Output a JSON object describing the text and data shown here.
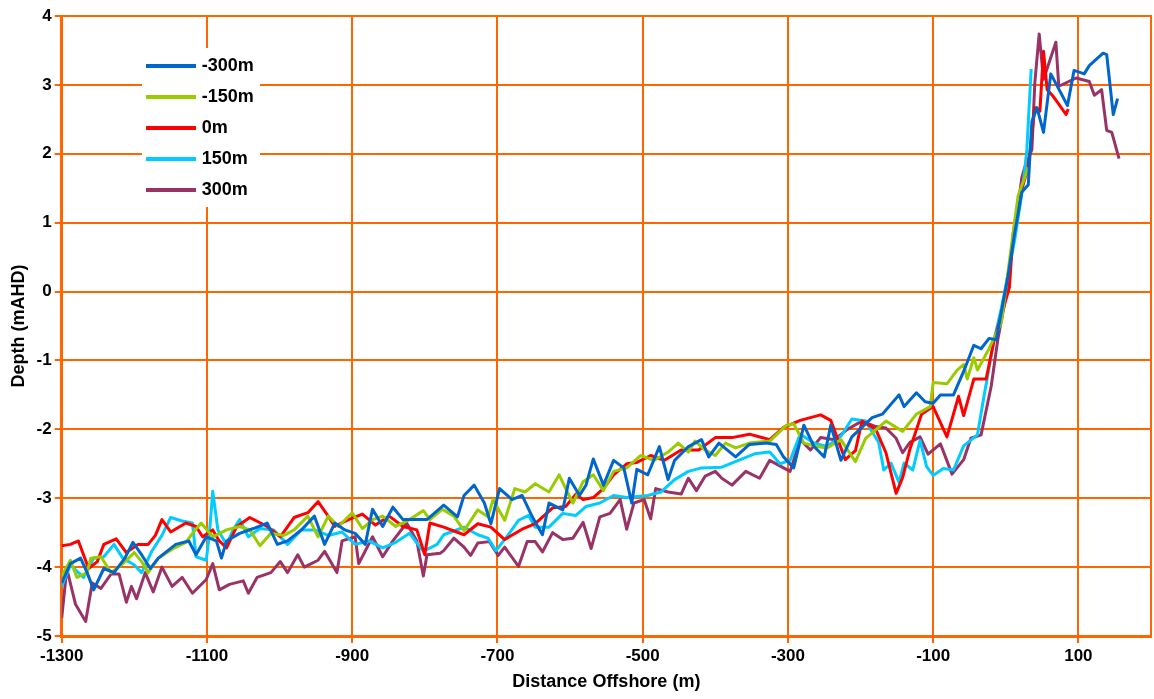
{
  "chart_data": {
    "type": "line",
    "xlabel": "Distance Offshore (m)",
    "ylabel": "Depth (mAHD)",
    "xlim": [
      -1300,
      200
    ],
    "xticks": [
      -1300,
      -1100,
      -900,
      -700,
      -500,
      -300,
      -100,
      100
    ],
    "ylim": [
      -5,
      4
    ],
    "yticks": [
      -5,
      -4,
      -3,
      -2,
      -1,
      0,
      1,
      2,
      3,
      4
    ],
    "grid": true,
    "legend": "top left",
    "marker": "none",
    "line_style": "solid",
    "series": [
      {
        "name": "-300m",
        "color": "#0066cc",
        "x": [
          -1300,
          -1288,
          -1274,
          -1265,
          -1256,
          -1242,
          -1228,
          -1213,
          -1202,
          -1190,
          -1178,
          -1167,
          -1143,
          -1125,
          -1115,
          -1101,
          -1087,
          -1080,
          -1073,
          -1055,
          -1036,
          -1017,
          -1003,
          -989,
          -970,
          -952,
          -938,
          -924,
          -910,
          -896,
          -882,
          -872,
          -858,
          -844,
          -830,
          -811,
          -797,
          -774,
          -755,
          -746,
          -732,
          -718,
          -709,
          -697,
          -680,
          -666,
          -652,
          -638,
          -629,
          -610,
          -601,
          -587,
          -578,
          -568,
          -554,
          -540,
          -526,
          -515,
          -508,
          -493,
          -477,
          -465,
          -456,
          -437,
          -419,
          -409,
          -395,
          -372,
          -353,
          -330,
          -316,
          -306,
          -292,
          -278,
          -264,
          -250,
          -241,
          -227,
          -212,
          -184,
          -170,
          -147,
          -140,
          -123,
          -111,
          -100,
          -90,
          -72,
          -58,
          -44,
          -34,
          -23,
          -13,
          -6,
          3,
          12,
          22,
          31,
          36,
          43,
          52,
          62,
          85,
          94,
          108,
          115,
          134,
          139,
          148,
          154
        ],
        "values": [
          -4.23,
          -3.95,
          -3.87,
          -4.08,
          -4.33,
          -4.02,
          -4.08,
          -3.87,
          -3.64,
          -3.82,
          -4.02,
          -3.87,
          -3.67,
          -3.62,
          -3.82,
          -3.56,
          -3.62,
          -3.87,
          -3.62,
          -3.51,
          -3.44,
          -3.36,
          -3.67,
          -3.62,
          -3.46,
          -3.26,
          -3.67,
          -3.36,
          -3.46,
          -3.51,
          -3.67,
          -3.16,
          -3.41,
          -3.13,
          -3.31,
          -3.31,
          -3.31,
          -3.1,
          -3.27,
          -2.96,
          -2.81,
          -3.07,
          -3.37,
          -2.86,
          -3.02,
          -2.96,
          -3.27,
          -3.53,
          -3.07,
          -3.17,
          -2.71,
          -2.96,
          -2.81,
          -2.43,
          -2.81,
          -2.45,
          -2.56,
          -3.07,
          -2.58,
          -2.66,
          -2.25,
          -2.73,
          -2.45,
          -2.25,
          -2.15,
          -2.4,
          -2.2,
          -2.4,
          -2.22,
          -2.2,
          -2.22,
          -2.4,
          -2.56,
          -1.94,
          -2.25,
          -2.4,
          -1.94,
          -2.45,
          -2.11,
          -1.83,
          -1.78,
          -1.5,
          -1.67,
          -1.47,
          -1.6,
          -1.62,
          -1.5,
          -1.5,
          -1.16,
          -0.78,
          -0.83,
          -0.68,
          -0.7,
          -0.29,
          0.22,
          0.83,
          1.44,
          1.55,
          2.47,
          2.67,
          2.31,
          3.16,
          2.7,
          3.21,
          3.16,
          3.28,
          3.46,
          3.44,
          2.57,
          2.8
        ]
      },
      {
        "name": "-150m",
        "color": "#99cc00",
        "x": [
          -1300,
          -1288,
          -1279,
          -1265,
          -1260,
          -1246,
          -1232,
          -1218,
          -1200,
          -1190,
          -1181,
          -1167,
          -1148,
          -1129,
          -1120,
          -1108,
          -1092,
          -1073,
          -1055,
          -1041,
          -1027,
          -1012,
          -994,
          -980,
          -961,
          -947,
          -933,
          -919,
          -900,
          -886,
          -872,
          -858,
          -840,
          -821,
          -802,
          -793,
          -776,
          -760,
          -746,
          -727,
          -713,
          -706,
          -690,
          -676,
          -662,
          -648,
          -629,
          -615,
          -606,
          -596,
          -582,
          -568,
          -554,
          -540,
          -522,
          -503,
          -484,
          -465,
          -451,
          -437,
          -428,
          -414,
          -400,
          -386,
          -372,
          -353,
          -325,
          -302,
          -292,
          -278,
          -260,
          -246,
          -227,
          -207,
          -193,
          -165,
          -142,
          -123,
          -104,
          -100,
          -81,
          -67,
          -58,
          -53,
          -44,
          -39,
          -23,
          -6,
          8,
          17,
          31
        ],
        "values": [
          -4.13,
          -3.9,
          -4.15,
          -4.08,
          -3.87,
          -3.85,
          -4.08,
          -3.97,
          -3.79,
          -3.92,
          -4.08,
          -3.87,
          -3.74,
          -3.64,
          -3.51,
          -3.36,
          -3.56,
          -3.46,
          -3.41,
          -3.46,
          -3.69,
          -3.51,
          -3.54,
          -3.46,
          -3.26,
          -3.56,
          -3.26,
          -3.41,
          -3.21,
          -3.44,
          -3.31,
          -3.26,
          -3.41,
          -3.31,
          -3.18,
          -3.31,
          -3.16,
          -3.26,
          -3.47,
          -3.17,
          -3.27,
          -3.02,
          -3.32,
          -2.86,
          -2.91,
          -2.79,
          -2.91,
          -2.66,
          -2.86,
          -3.07,
          -2.76,
          -2.66,
          -2.89,
          -2.61,
          -2.56,
          -2.38,
          -2.45,
          -2.33,
          -2.2,
          -2.33,
          -2.17,
          -2.3,
          -2.38,
          -2.2,
          -2.27,
          -2.2,
          -2.17,
          -1.94,
          -1.92,
          -2.2,
          -2.25,
          -2.27,
          -2.15,
          -2.47,
          -2.13,
          -1.88,
          -2.03,
          -1.78,
          -1.67,
          -1.32,
          -1.34,
          -1.14,
          -1.06,
          -1.27,
          -0.96,
          -1.14,
          -0.83,
          -0.45,
          0.68,
          1.39,
          1.8
        ]
      },
      {
        "name": "0m",
        "color": "#ff0000",
        "x": [
          -1300,
          -1288,
          -1277,
          -1263,
          -1251,
          -1242,
          -1225,
          -1211,
          -1195,
          -1181,
          -1171,
          -1162,
          -1150,
          -1129,
          -1115,
          -1106,
          -1092,
          -1083,
          -1073,
          -1059,
          -1041,
          -1017,
          -999,
          -980,
          -961,
          -947,
          -933,
          -924,
          -905,
          -886,
          -868,
          -849,
          -830,
          -811,
          -800,
          -793,
          -774,
          -746,
          -727,
          -709,
          -690,
          -666,
          -648,
          -624,
          -606,
          -592,
          -582,
          -568,
          -554,
          -540,
          -522,
          -508,
          -489,
          -470,
          -447,
          -423,
          -400,
          -377,
          -353,
          -325,
          -306,
          -283,
          -255,
          -241,
          -221,
          -207,
          -198,
          -179,
          -165,
          -151,
          -142,
          -132,
          -116,
          -100,
          -81,
          -65,
          -58,
          -44,
          -27,
          -16,
          -6,
          5,
          10,
          19,
          31,
          40,
          47,
          52,
          57,
          64,
          73,
          83,
          86
        ],
        "values": [
          -3.69,
          -3.67,
          -3.62,
          -4.02,
          -3.92,
          -3.67,
          -3.59,
          -3.79,
          -3.67,
          -3.67,
          -3.54,
          -3.31,
          -3.49,
          -3.36,
          -3.41,
          -3.56,
          -3.46,
          -3.62,
          -3.72,
          -3.41,
          -3.28,
          -3.41,
          -3.56,
          -3.28,
          -3.21,
          -3.05,
          -3.26,
          -3.41,
          -3.31,
          -3.23,
          -3.39,
          -3.26,
          -3.41,
          -3.46,
          -3.82,
          -3.36,
          -3.42,
          -3.53,
          -3.37,
          -3.42,
          -3.6,
          -3.45,
          -3.37,
          -3.14,
          -3.12,
          -2.94,
          -3.02,
          -2.99,
          -2.86,
          -2.66,
          -2.5,
          -2.48,
          -2.38,
          -2.45,
          -2.3,
          -2.3,
          -2.12,
          -2.12,
          -2.07,
          -2.15,
          -1.97,
          -1.87,
          -1.79,
          -1.87,
          -2.44,
          -2.31,
          -1.88,
          -2.0,
          -2.34,
          -2.93,
          -2.7,
          -2.29,
          -1.78,
          -1.67,
          -2.11,
          -1.52,
          -1.8,
          -1.27,
          -1.27,
          -0.7,
          -0.35,
          0.06,
          0.83,
          1.39,
          1.8,
          2.67,
          2.62,
          3.49,
          2.93,
          2.85,
          2.72,
          2.57,
          2.65
        ]
      },
      {
        "name": "150m",
        "color": "#00ccff",
        "x": [
          -1300,
          -1288,
          -1270,
          -1256,
          -1242,
          -1228,
          -1216,
          -1200,
          -1190,
          -1176,
          -1162,
          -1150,
          -1134,
          -1120,
          -1115,
          -1101,
          -1097,
          -1092,
          -1085,
          -1073,
          -1064,
          -1055,
          -1043,
          -1027,
          -1008,
          -989,
          -970,
          -952,
          -933,
          -914,
          -896,
          -877,
          -858,
          -840,
          -821,
          -802,
          -783,
          -774,
          -746,
          -727,
          -713,
          -702,
          -685,
          -671,
          -657,
          -648,
          -629,
          -610,
          -592,
          -578,
          -559,
          -540,
          -522,
          -493,
          -475,
          -456,
          -437,
          -419,
          -391,
          -363,
          -344,
          -325,
          -311,
          -297,
          -283,
          -264,
          -246,
          -227,
          -212,
          -193,
          -175,
          -168,
          -158,
          -147,
          -140,
          -128,
          -118,
          -109,
          -100,
          -86,
          -72,
          -58,
          -39,
          -30,
          -16,
          -6,
          12,
          24,
          29,
          35
        ],
        "values": [
          -4.28,
          -3.97,
          -4.15,
          -3.87,
          -3.85,
          -3.67,
          -3.87,
          -3.97,
          -4.08,
          -3.77,
          -3.54,
          -3.28,
          -3.33,
          -3.36,
          -3.85,
          -3.9,
          -3.56,
          -2.9,
          -3.46,
          -3.67,
          -3.46,
          -3.31,
          -3.56,
          -3.44,
          -3.46,
          -3.67,
          -3.46,
          -3.46,
          -3.54,
          -3.49,
          -3.67,
          -3.62,
          -3.72,
          -3.64,
          -3.51,
          -3.77,
          -3.67,
          -3.53,
          -3.42,
          -3.53,
          -3.58,
          -3.76,
          -3.53,
          -3.32,
          -3.25,
          -3.42,
          -3.42,
          -3.22,
          -3.25,
          -3.12,
          -3.07,
          -2.96,
          -2.99,
          -2.96,
          -2.91,
          -2.73,
          -2.61,
          -2.56,
          -2.55,
          -2.43,
          -2.35,
          -2.33,
          -2.5,
          -2.45,
          -2.07,
          -2.2,
          -2.25,
          -2.1,
          -1.85,
          -1.88,
          -2.19,
          -2.59,
          -2.49,
          -2.77,
          -2.49,
          -2.59,
          -2.16,
          -2.54,
          -2.67,
          -2.57,
          -2.59,
          -2.24,
          -2.08,
          -1.52,
          -0.7,
          -0.24,
          0.73,
          1.55,
          2.06,
          3.23
        ]
      },
      {
        "name": "300m",
        "color": "#993366",
        "x": [
          -1300,
          -1293,
          -1281,
          -1267,
          -1258,
          -1246,
          -1232,
          -1221,
          -1211,
          -1204,
          -1197,
          -1185,
          -1174,
          -1162,
          -1148,
          -1134,
          -1120,
          -1101,
          -1092,
          -1083,
          -1069,
          -1050,
          -1043,
          -1031,
          -1012,
          -999,
          -989,
          -975,
          -966,
          -947,
          -938,
          -921,
          -914,
          -896,
          -891,
          -872,
          -858,
          -844,
          -825,
          -811,
          -802,
          -797,
          -779,
          -774,
          -760,
          -746,
          -737,
          -727,
          -711,
          -699,
          -690,
          -671,
          -659,
          -648,
          -638,
          -624,
          -610,
          -596,
          -582,
          -571,
          -559,
          -545,
          -531,
          -522,
          -512,
          -498,
          -489,
          -482,
          -465,
          -447,
          -437,
          -426,
          -414,
          -400,
          -391,
          -377,
          -358,
          -339,
          -325,
          -306,
          -297,
          -283,
          -269,
          -255,
          -236,
          -218,
          -198,
          -179,
          -165,
          -151,
          -142,
          -132,
          -118,
          -107,
          -90,
          -74,
          -58,
          -48,
          -34,
          -20,
          -11,
          -2,
          12,
          22,
          26,
          36,
          40,
          46,
          52,
          69,
          73,
          97,
          115,
          122,
          132,
          139,
          146,
          156
        ],
        "values": [
          -4.74,
          -4.02,
          -4.54,
          -4.79,
          -4.23,
          -4.31,
          -4.1,
          -4.1,
          -4.51,
          -4.28,
          -4.46,
          -4.08,
          -4.36,
          -4.0,
          -4.28,
          -4.15,
          -4.38,
          -4.18,
          -3.95,
          -4.33,
          -4.25,
          -4.2,
          -4.38,
          -4.15,
          -4.08,
          -3.92,
          -4.08,
          -3.82,
          -4.0,
          -3.9,
          -3.77,
          -4.08,
          -3.62,
          -3.56,
          -3.95,
          -3.56,
          -3.85,
          -3.62,
          -3.36,
          -3.62,
          -4.13,
          -3.82,
          -3.8,
          -3.76,
          -3.58,
          -3.71,
          -3.83,
          -3.65,
          -3.63,
          -3.83,
          -3.71,
          -3.99,
          -3.63,
          -3.63,
          -3.78,
          -3.5,
          -3.6,
          -3.58,
          -3.35,
          -3.73,
          -3.27,
          -3.22,
          -3.02,
          -3.45,
          -3.07,
          -3.02,
          -3.3,
          -2.86,
          -2.91,
          -2.94,
          -2.71,
          -2.89,
          -2.68,
          -2.61,
          -2.71,
          -2.81,
          -2.61,
          -2.71,
          -2.45,
          -2.56,
          -2.61,
          -2.15,
          -2.3,
          -2.12,
          -2.15,
          -2.0,
          -1.88,
          -1.96,
          -1.98,
          -2.13,
          -2.34,
          -2.19,
          -2.11,
          -2.36,
          -2.21,
          -2.65,
          -2.44,
          -2.13,
          -2.08,
          -1.37,
          -0.7,
          -0.19,
          0.83,
          1.65,
          1.8,
          2.06,
          3.03,
          3.74,
          3.08,
          3.62,
          2.98,
          3.1,
          3.05,
          2.85,
          2.93,
          2.34,
          2.31,
          1.93
        ]
      }
    ]
  }
}
